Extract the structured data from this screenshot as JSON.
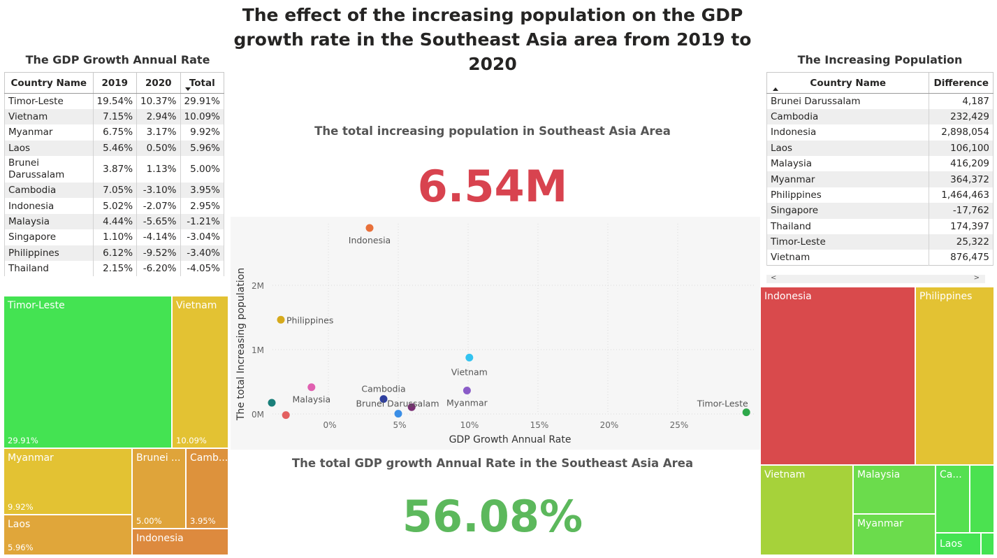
{
  "title": "The effect of the increasing population on the GDP growth rate in the Southeast Asia area from 2019 to 2020",
  "gdp_table": {
    "title": "The GDP Growth Annual Rate",
    "headers": [
      "Country Name",
      "2019",
      "2020",
      "Total"
    ],
    "sort": "Total descending",
    "rows": [
      [
        "Timor-Leste",
        "19.54%",
        "10.37%",
        "29.91%"
      ],
      [
        "Vietnam",
        "7.15%",
        "2.94%",
        "10.09%"
      ],
      [
        "Myanmar",
        "6.75%",
        "3.17%",
        "9.92%"
      ],
      [
        "Laos",
        "5.46%",
        "0.50%",
        "5.96%"
      ],
      [
        "Brunei Darussalam",
        "3.87%",
        "1.13%",
        "5.00%"
      ],
      [
        "Cambodia",
        "7.05%",
        "-3.10%",
        "3.95%"
      ],
      [
        "Indonesia",
        "5.02%",
        "-2.07%",
        "2.95%"
      ],
      [
        "Malaysia",
        "4.44%",
        "-5.65%",
        "-1.21%"
      ],
      [
        "Singapore",
        "1.10%",
        "-4.14%",
        "-3.04%"
      ],
      [
        "Philippines",
        "6.12%",
        "-9.52%",
        "-3.40%"
      ],
      [
        "Thailand",
        "2.15%",
        "-6.20%",
        "-4.05%"
      ]
    ]
  },
  "pop_table": {
    "title": "The Increasing Population",
    "headers": [
      "Country Name",
      "Difference"
    ],
    "sort": "Country Name ascending",
    "rows": [
      [
        "Brunei Darussalam",
        "4,187"
      ],
      [
        "Cambodia",
        "232,429"
      ],
      [
        "Indonesia",
        "2,898,054"
      ],
      [
        "Laos",
        "106,100"
      ],
      [
        "Malaysia",
        "416,209"
      ],
      [
        "Myanmar",
        "364,372"
      ],
      [
        "Philippines",
        "1,464,463"
      ],
      [
        "Singapore",
        "-17,762"
      ],
      [
        "Thailand",
        "174,397"
      ],
      [
        "Timor-Leste",
        "25,322"
      ],
      [
        "Vietnam",
        "876,475"
      ]
    ],
    "scroll_left": "<",
    "scroll_right": ">"
  },
  "gdp_treemap": {
    "tiles": [
      {
        "label": "Timor-Leste",
        "value": "29.91%",
        "color": "#44e352"
      },
      {
        "label": "Vietnam",
        "value": "10.09%",
        "color": "#e3c233"
      },
      {
        "label": "Myanmar",
        "value": "9.92%",
        "color": "#e3c233"
      },
      {
        "label": "Brunei ...",
        "value": "5.00%",
        "color": "#dfa43a"
      },
      {
        "label": "Camb...",
        "value": "3.95%",
        "color": "#dd923c"
      },
      {
        "label": "Laos",
        "value": "5.96%",
        "color": "#e0a63a"
      },
      {
        "label": "Indonesia",
        "value": "",
        "color": "#dd8a3e"
      }
    ]
  },
  "pop_treemap": {
    "tiles": [
      {
        "label": "Indonesia",
        "color": "#d94a4c"
      },
      {
        "label": "Philippines",
        "color": "#e3c233"
      },
      {
        "label": "Vietnam",
        "color": "#a6d23a"
      },
      {
        "label": "Malaysia",
        "color": "#6bdc4c"
      },
      {
        "label": "Myanmar",
        "color": "#6bdc4c"
      },
      {
        "label": "Ca...",
        "color": "#55e050"
      },
      {
        "label": "",
        "color": "#4be250"
      },
      {
        "label": "Laos",
        "color": "#44e352"
      },
      {
        "label": "",
        "color": "#44e352"
      }
    ]
  },
  "pop_card": {
    "title": "The total increasing population in Southeast Asia Area",
    "value": "6.54M",
    "color": "#d8434f"
  },
  "gdp_card": {
    "title": "The total GDP growth Annual Rate in the Southeast Asia Area",
    "value": "56.08%",
    "color": "#5cb85c"
  },
  "chart_data": {
    "type": "scatter",
    "xlabel": "GDP Growth Annual Rate",
    "ylabel": "The total Increasing population",
    "x_ticks": [
      "0%",
      "5%",
      "10%",
      "15%",
      "20%",
      "25%"
    ],
    "y_ticks": [
      "0M",
      "1M",
      "2M"
    ],
    "xlim": [
      -4.05,
      29.91
    ],
    "ylim": [
      0,
      2898054
    ],
    "grid": true,
    "points": [
      {
        "name": "Indonesia",
        "x": 2.95,
        "y": 2898054,
        "color": "#e8703a",
        "label": true
      },
      {
        "name": "Philippines",
        "x": -3.4,
        "y": 1464463,
        "color": "#d6aa1c",
        "label": true
      },
      {
        "name": "Vietnam",
        "x": 10.09,
        "y": 876475,
        "color": "#33c3f0",
        "label": true
      },
      {
        "name": "Malaysia",
        "x": -1.21,
        "y": 416209,
        "color": "#e060b0",
        "label": true
      },
      {
        "name": "Myanmar",
        "x": 9.92,
        "y": 364372,
        "color": "#8a5cc8",
        "label": true
      },
      {
        "name": "Cambodia",
        "x": 3.95,
        "y": 232429,
        "color": "#2f3f9f",
        "label": true
      },
      {
        "name": "Thailand",
        "x": -4.05,
        "y": 174397,
        "color": "#1a7f7a",
        "label": false
      },
      {
        "name": "Laos",
        "x": 5.96,
        "y": 106100,
        "color": "#7a2f74",
        "label": false
      },
      {
        "name": "Brunei Darussalam",
        "x": 5.0,
        "y": 4187,
        "color": "#3a8ee6",
        "label": true
      },
      {
        "name": "Singapore",
        "x": -3.04,
        "y": -17762,
        "color": "#e36060",
        "label": false
      },
      {
        "name": "Timor-Leste",
        "x": 29.91,
        "y": 25322,
        "color": "#2ea84a",
        "label": true
      }
    ]
  }
}
